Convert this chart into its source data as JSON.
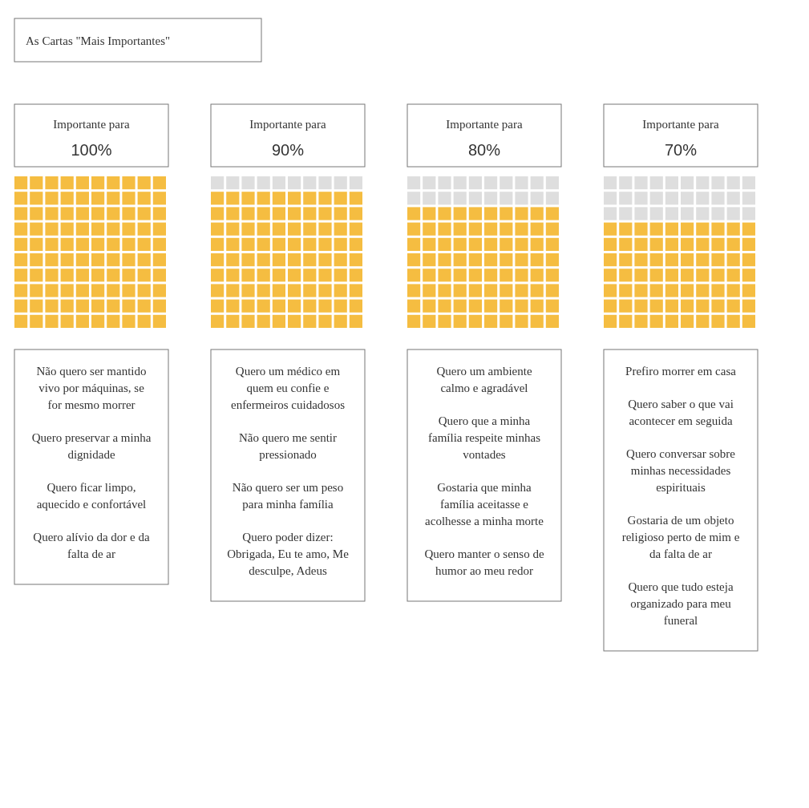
{
  "chart_data": [
    {
      "type": "other",
      "title": "As Cartas \"Mais Importantes\"",
      "categories": [
        "Importante para"
      ],
      "values": [
        100
      ],
      "value_labels": [
        "100%"
      ],
      "colors": [
        "#f5bd41"
      ],
      "annotations": [
        "Não quero ser mantido vivo por máquinas, se for mesmo morrer",
        "Quero preservar a minha dignidade",
        "Quero ficar limpo, aquecido e confortável",
        "Quero alívio da dor e da falta de ar"
      ]
    },
    {
      "type": "other",
      "categories": [
        "Importante para"
      ],
      "values": [
        90
      ],
      "value_labels": [
        "90%"
      ],
      "colors": [
        "#f5bd41"
      ],
      "annotations": [
        "Quero um médico em quem eu confie e enfermeiros cuidadosos",
        "Não quero me sentir pressionado",
        "Não quero ser um peso para minha família",
        "Quero poder dizer: Obrigada, Eu te amo, Me desculpe, Adeus"
      ]
    },
    {
      "type": "other",
      "categories": [
        "Importante para"
      ],
      "values": [
        80
      ],
      "value_labels": [
        "80%"
      ],
      "colors": [
        "#f5bd41"
      ],
      "annotations": [
        "Quero um ambiente calmo e agradável",
        "Quero que a minha família respeite minhas vontades",
        "Gostaria que minha família aceitasse e acolhesse a minha morte",
        "Quero manter o senso de humor ao meu redor"
      ]
    },
    {
      "type": "other",
      "categories": [
        "Importante para"
      ],
      "values": [
        70
      ],
      "value_labels": [
        "70%"
      ],
      "colors": [
        "#f5bd41"
      ],
      "annotations": [
        "Prefiro morrer em casa",
        "Quero saber o que vai acontecer em seguida",
        "Quero conversar sobre minhas necessidades espirituais",
        "Gostaria de um objeto religioso perto de mim e da falta de ar",
        "Quero que tudo esteja organizado para meu funeral"
      ]
    }
  ]
}
